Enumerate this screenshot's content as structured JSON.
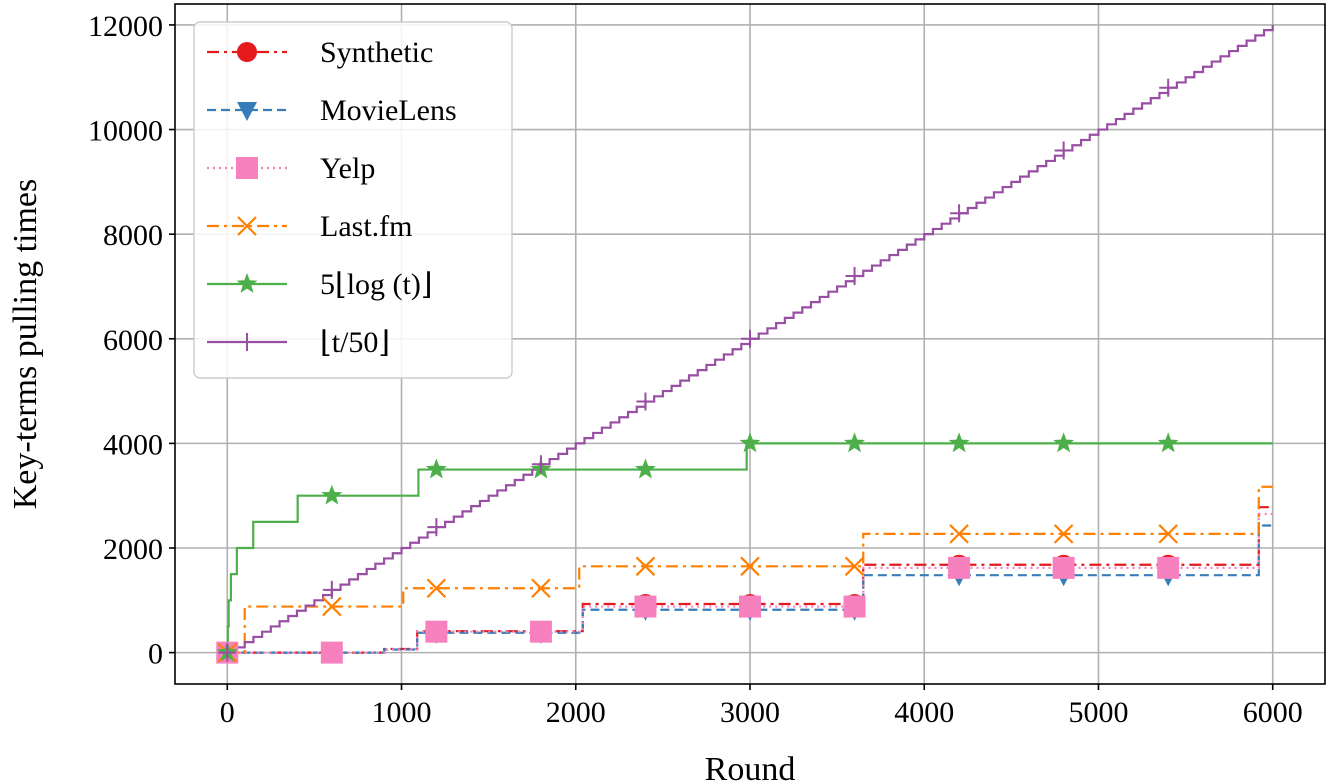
{
  "chart_data": {
    "type": "line",
    "title": "",
    "xlabel": "Round",
    "ylabel": "Key-terms pulling times",
    "xlim": [
      -300,
      6300
    ],
    "ylim": [
      -600,
      12400
    ],
    "x_ticks": [
      0,
      1000,
      2000,
      3000,
      4000,
      5000,
      6000
    ],
    "y_ticks": [
      0,
      2000,
      4000,
      6000,
      8000,
      10000,
      12000
    ],
    "grid": true,
    "legend_position": "top-left",
    "series": [
      {
        "name": "Synthetic",
        "label": "Synthetic",
        "color": "#e41a1c",
        "dash": "12,5,3,5",
        "marker": "circle",
        "steps": [
          [
            0,
            0
          ],
          [
            900,
            70
          ],
          [
            1090,
            410
          ],
          [
            2040,
            930
          ],
          [
            3650,
            1680
          ],
          [
            5920,
            2780
          ],
          [
            6000,
            2780
          ]
        ],
        "marker_x": [
          0,
          600,
          1200,
          1800,
          2400,
          3000,
          3600,
          4200,
          4800,
          5400
        ]
      },
      {
        "name": "MovieLens",
        "label": "MovieLens",
        "color": "#377eb8",
        "dash": "9,5",
        "marker": "triangle-down",
        "steps": [
          [
            0,
            0
          ],
          [
            900,
            60
          ],
          [
            1090,
            380
          ],
          [
            2040,
            820
          ],
          [
            3650,
            1480
          ],
          [
            5920,
            2430
          ],
          [
            6000,
            2430
          ]
        ],
        "marker_x": [
          0,
          600,
          1200,
          1800,
          2400,
          3000,
          3600,
          4200,
          4800,
          5400
        ]
      },
      {
        "name": "Yelp",
        "label": "Yelp",
        "color": "#f781bf",
        "dash": "2,4",
        "marker": "square",
        "steps": [
          [
            0,
            0
          ],
          [
            900,
            60
          ],
          [
            1090,
            400
          ],
          [
            2040,
            880
          ],
          [
            3650,
            1620
          ],
          [
            5920,
            2650
          ],
          [
            6000,
            2650
          ]
        ],
        "marker_x": [
          0,
          600,
          1200,
          1800,
          2400,
          3000,
          3600,
          4200,
          4800,
          5400
        ]
      },
      {
        "name": "Last.fm",
        "label": "Last.fm",
        "color": "#ff7f00",
        "dash": "12,5,3,5",
        "marker": "x",
        "steps": [
          [
            0,
            0
          ],
          [
            100,
            880
          ],
          [
            1010,
            1230
          ],
          [
            2020,
            1650
          ],
          [
            3650,
            2270
          ],
          [
            5920,
            3170
          ],
          [
            6000,
            3170
          ]
        ],
        "marker_x": [
          0,
          600,
          1200,
          1800,
          2400,
          3000,
          3600,
          4200,
          4800,
          5400
        ]
      },
      {
        "name": "5 floor log t",
        "label": "5⌊log (t)⌋",
        "color": "#4daf4a",
        "dash": "",
        "marker": "star",
        "steps": [
          [
            0,
            0
          ],
          [
            3,
            500
          ],
          [
            8,
            1000
          ],
          [
            21,
            1500
          ],
          [
            55,
            2000
          ],
          [
            149,
            2500
          ],
          [
            404,
            3000
          ],
          [
            1097,
            3500
          ],
          [
            2981,
            4000
          ],
          [
            6000,
            4000
          ]
        ],
        "marker_x": [
          0,
          600,
          1200,
          1800,
          2400,
          3000,
          3600,
          4200,
          4800,
          5400
        ]
      },
      {
        "name": "floor t/50",
        "label": "⌊t/50⌋",
        "color": "#984ea3",
        "dash": "",
        "marker": "plus",
        "staircase": {
          "x_step": 50,
          "y_step": 100,
          "x_end": 6000
        },
        "marker_x": [
          0,
          600,
          1200,
          1800,
          2400,
          3000,
          3600,
          4200,
          4800,
          5400
        ]
      }
    ]
  }
}
